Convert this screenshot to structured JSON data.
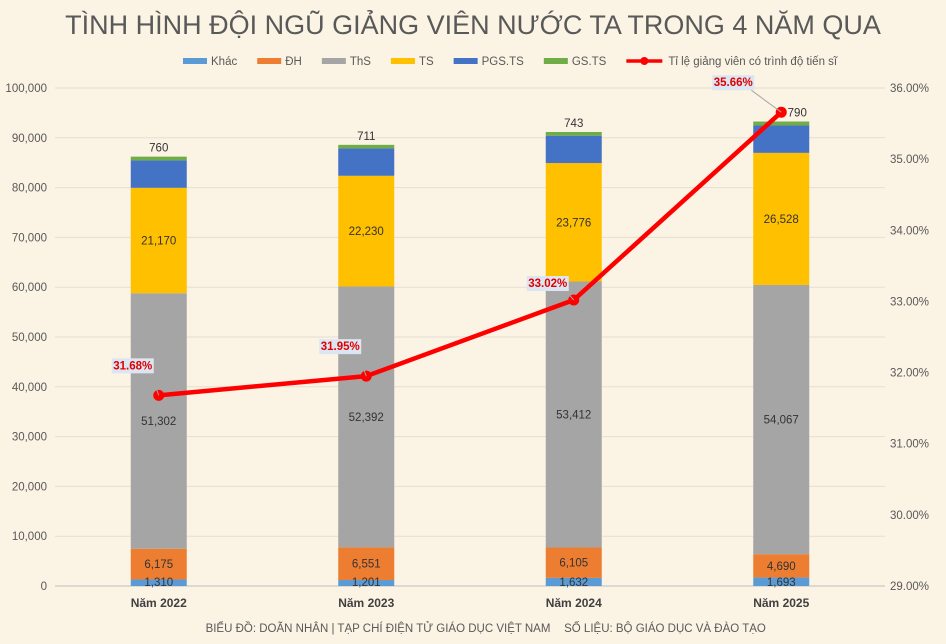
{
  "chart_data": {
    "type": "bar",
    "stacked": true,
    "title": "TÌNH HÌNH ĐỘI NGŨ GIẢNG VIÊN NƯỚC TA TRONG 4 NĂM QUA",
    "categories": [
      "Năm 2022",
      "Năm 2023",
      "Năm 2024",
      "Năm 2025"
    ],
    "series": [
      {
        "name": "Khác",
        "color": "#5b9bd5",
        "values": [
          1310,
          1201,
          1632,
          1693
        ]
      },
      {
        "name": "ĐH",
        "color": "#ed7d31",
        "values": [
          6175,
          6551,
          6105,
          4690
        ]
      },
      {
        "name": "ThS",
        "color": "#a5a5a5",
        "values": [
          51302,
          52392,
          53412,
          54067
        ]
      },
      {
        "name": "TS",
        "color": "#ffc000",
        "values": [
          21170,
          22230,
          23776,
          26528
        ]
      },
      {
        "name": "PGS.TS",
        "color": "#4472c4",
        "values": [
          5500,
          5500,
          5500,
          5500
        ]
      },
      {
        "name": "GS.TS",
        "color": "#70ad47",
        "values": [
          760,
          711,
          743,
          790
        ]
      }
    ],
    "line_series": {
      "name": "Tỉ lệ giảng viên có trình độ tiến sĩ",
      "color": "#ff0000",
      "axis": "right",
      "values": [
        31.68,
        31.95,
        33.02,
        35.66
      ],
      "labels": [
        "31.68%",
        "31.95%",
        "33.02%",
        "35.66%"
      ]
    },
    "y_left": {
      "min": 0,
      "max": 100000,
      "step": 10000,
      "ticks": [
        "0",
        "10,000",
        "20,000",
        "30,000",
        "40,000",
        "50,000",
        "60,000",
        "70,000",
        "80,000",
        "90,000",
        "100,000"
      ]
    },
    "y_right": {
      "min": 29,
      "max": 36,
      "step": 1,
      "ticks": [
        "29.00%",
        "30.00%",
        "31.00%",
        "32.00%",
        "33.00%",
        "34.00%",
        "35.00%",
        "36.00%"
      ]
    },
    "visible_labels": {
      "Khác": [
        "1,310",
        "1,201",
        "1,632",
        "1,693"
      ],
      "ĐH": [
        "6,175",
        "6,551",
        "6,105",
        "4,690"
      ],
      "ThS": [
        "51,302",
        "52,392",
        "53,412",
        "54,067"
      ],
      "TS": [
        "21,170",
        "22,230",
        "23,776",
        "26,528"
      ],
      "GS.TS": [
        "760",
        "711",
        "743",
        "790"
      ]
    },
    "grid": true,
    "legend": "top"
  },
  "footer": {
    "credit": "BIỂU ĐỒ: DOÃN NHÂN | TẠP CHÍ ĐIỆN TỬ GIÁO DỤC VIỆT NAM",
    "source": "SỐ LIỆU: BỘ GIÁO DỤC VÀ ĐÀO TẠO"
  }
}
